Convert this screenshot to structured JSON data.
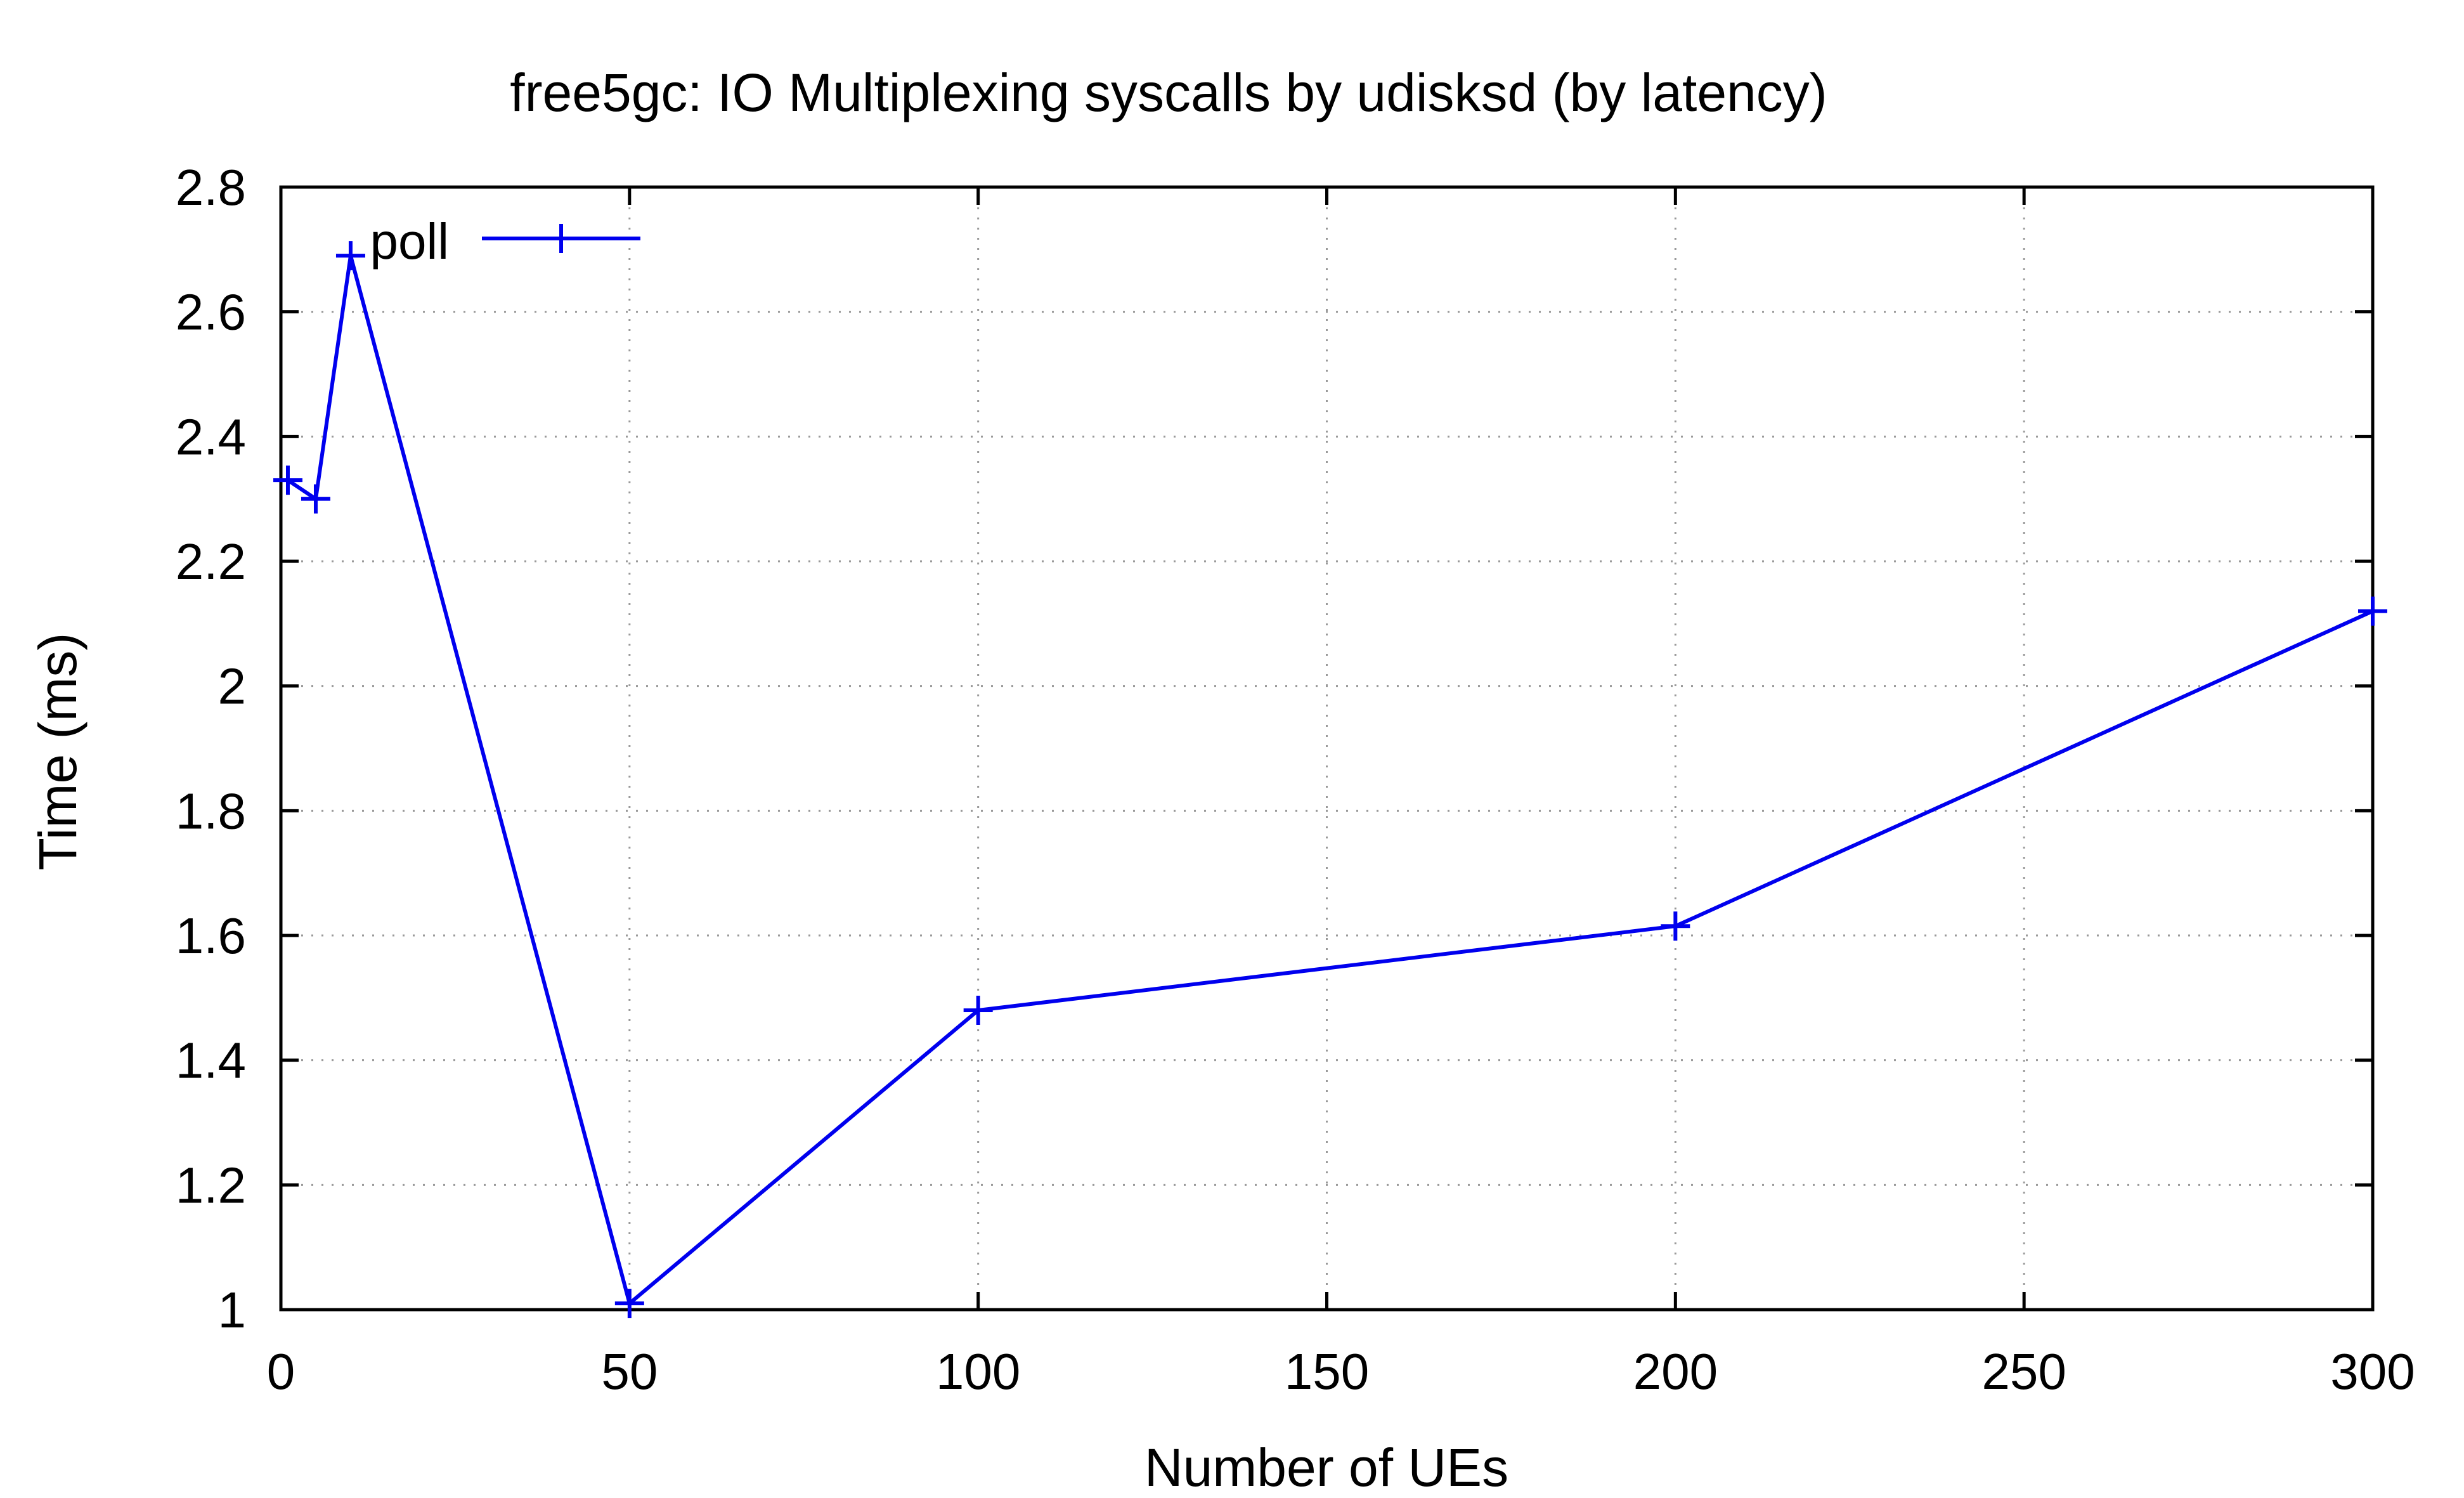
{
  "chart_data": {
    "type": "line",
    "title": "free5gc: IO Multiplexing syscalls by udisksd (by latency)",
    "xlabel": "Number of UEs",
    "ylabel": "Time (ms)",
    "xlim": [
      0,
      300
    ],
    "ylim": [
      1,
      2.8
    ],
    "xticks": [
      "0",
      "50",
      "100",
      "150",
      "200",
      "250",
      "300"
    ],
    "yticks": [
      "1",
      "1.2",
      "1.4",
      "1.6",
      "1.8",
      "2",
      "2.2",
      "2.4",
      "2.6",
      "2.8"
    ],
    "grid": true,
    "legend_position": "top-left",
    "series": [
      {
        "name": "poll",
        "color": "#0000ee",
        "marker": "plus",
        "x": [
          1,
          5,
          10,
          50,
          100,
          200,
          300
        ],
        "y": [
          2.33,
          2.3,
          2.69,
          1.01,
          1.48,
          1.615,
          2.12
        ]
      }
    ]
  }
}
